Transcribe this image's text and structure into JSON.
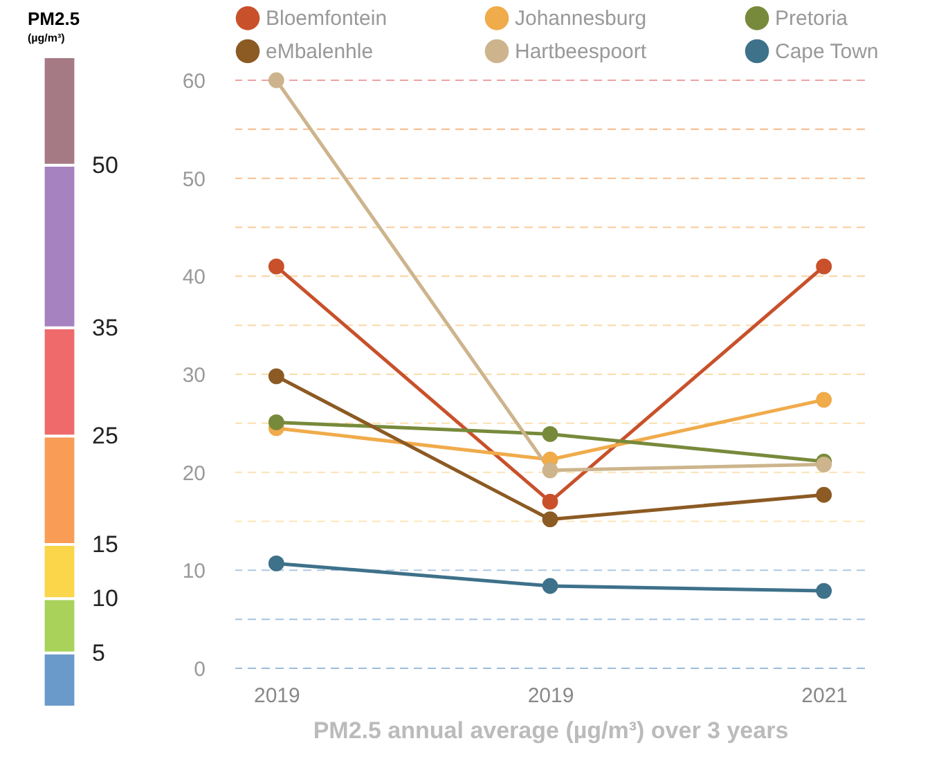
{
  "chart_data": [
    {
      "type": "bar",
      "stacked": true,
      "title": "PM2.5",
      "subtitle": "(µg/m³)",
      "categories": [
        null
      ],
      "series": [
        {
          "color": "#6a9ac9",
          "values": [
            5
          ]
        },
        {
          "color": "#a8d25a",
          "values": [
            5
          ]
        },
        {
          "color": "#fbd54a",
          "values": [
            5
          ]
        },
        {
          "color": "#f99c55",
          "values": [
            10
          ]
        },
        {
          "color": "#ef6b6b",
          "values": [
            10
          ]
        },
        {
          "color": "#a682c0",
          "values": [
            15
          ]
        },
        {
          "color": "#a57a85",
          "values": [
            10
          ]
        }
      ],
      "ylim": [
        0,
        60
      ],
      "yticks": [
        5,
        10,
        15,
        25,
        35,
        50
      ]
    },
    {
      "type": "line",
      "categories": [
        "2019",
        "2019",
        "2021"
      ],
      "xlabel": "PM2.5 annual average (µg/m³) over 3 years",
      "series": [
        {
          "name": "Bloemfontein",
          "color": "#c8512b",
          "values": [
            41,
            17,
            41
          ]
        },
        {
          "name": "Johannesburg",
          "color": "#f0ab4b",
          "values": [
            24.5,
            21.3,
            27.4
          ]
        },
        {
          "name": "Pretoria",
          "color": "#778a3b",
          "values": [
            25.1,
            23.9,
            21.1
          ]
        },
        {
          "name": "eMbalenhle",
          "color": "#8c5a23",
          "values": [
            29.8,
            15.2,
            17.7
          ]
        },
        {
          "name": "Hartbeespoort",
          "color": "#cdb48c",
          "values": [
            60,
            20.2,
            20.8
          ]
        },
        {
          "name": "Cape Town",
          "color": "#3e718a",
          "values": [
            10.7,
            8.4,
            7.9
          ]
        }
      ],
      "ylim": [
        0,
        60
      ],
      "yticks": [
        0,
        {
          "value": 5,
          "label": null
        },
        10,
        {
          "value": 15,
          "label": null
        },
        20,
        {
          "value": 25,
          "label": null
        },
        30,
        {
          "value": 35,
          "label": null
        },
        40,
        {
          "value": 45,
          "label": null
        },
        50,
        {
          "value": 55,
          "label": null
        },
        60
      ],
      "ref_lines": [
        {
          "axis": "y",
          "value": 0,
          "color": "#9cbcdc",
          "line_style": "dashed"
        },
        {
          "axis": "y",
          "value": 5,
          "color": "#a4c2e0",
          "line_style": "dashed"
        },
        {
          "axis": "y",
          "value": 10,
          "color": "#adc8e3",
          "line_style": "dashed"
        },
        {
          "axis": "y",
          "value": 15,
          "color": "#fce8b8",
          "line_style": "dashed"
        },
        {
          "axis": "y",
          "value": 20,
          "color": "#fbe4b3",
          "line_style": "dashed"
        },
        {
          "axis": "y",
          "value": 25,
          "color": "#fbe0ae",
          "line_style": "dashed"
        },
        {
          "axis": "y",
          "value": 30,
          "color": "#fbdcaa",
          "line_style": "dashed"
        },
        {
          "axis": "y",
          "value": 35,
          "color": "#fad8a6",
          "line_style": "dashed"
        },
        {
          "axis": "y",
          "value": 40,
          "color": "#fad2a0",
          "line_style": "dashed"
        },
        {
          "axis": "y",
          "value": 45,
          "color": "#f9cb9a",
          "line_style": "dashed"
        },
        {
          "axis": "y",
          "value": 50,
          "color": "#f8c090",
          "line_style": "dashed"
        },
        {
          "axis": "y",
          "value": 55,
          "color": "#f7b98a",
          "line_style": "dashed"
        },
        {
          "axis": "y",
          "value": 60,
          "color": "#f0a0a0",
          "line_style": "dashed"
        }
      ],
      "legend": "top",
      "marker": "circle",
      "line_style": "solid"
    }
  ]
}
